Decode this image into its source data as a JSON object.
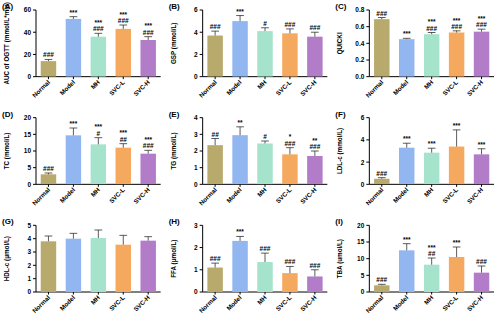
{
  "chart_data": [
    {
      "type": "bar",
      "title": "(A)",
      "y_label": "AUC of OGTT (mmol/L*min)",
      "categories": [
        "Normal",
        "Model",
        "MH",
        "SVC-L",
        "SVC-H"
      ],
      "values": [
        14,
        52,
        36,
        43,
        33
      ],
      "errors": [
        1.5,
        2,
        3,
        3.5,
        3
      ],
      "annotations": [
        [
          "###"
        ],
        [
          "***"
        ],
        [
          "***",
          "###"
        ],
        [
          "***",
          "###"
        ],
        [
          "***",
          "###"
        ]
      ],
      "colors": [
        "#b8a96c",
        "#92b6f0",
        "#a6e3cc",
        "#f5a95e",
        "#b27cc8"
      ],
      "ylim": [
        0,
        60
      ],
      "yticks": [
        0,
        20,
        40,
        60
      ]
    },
    {
      "type": "bar",
      "title": "(B)",
      "y_label": "GSP (mmol/L)",
      "categories": [
        "Normal",
        "Model",
        "MH",
        "SVC-L",
        "SVC-H"
      ],
      "values": [
        3.7,
        5.0,
        4.1,
        3.9,
        3.6
      ],
      "errors": [
        0.4,
        0.5,
        0.3,
        0.4,
        0.4
      ],
      "annotations": [
        [
          "###"
        ],
        [
          "***"
        ],
        [
          "#"
        ],
        [
          "###"
        ],
        [
          "###"
        ]
      ],
      "colors": [
        "#b8a96c",
        "#92b6f0",
        "#a6e3cc",
        "#f5a95e",
        "#b27cc8"
      ],
      "ylim": [
        0,
        6
      ],
      "yticks": [
        0,
        2,
        4,
        6
      ]
    },
    {
      "type": "bar",
      "title": "(C)",
      "y_label": "QUICKI",
      "categories": [
        "Normal",
        "Model",
        "MH",
        "SVC-L",
        "SVC-H"
      ],
      "values": [
        0.69,
        0.45,
        0.51,
        0.53,
        0.54
      ],
      "errors": [
        0.02,
        0.01,
        0.02,
        0.02,
        0.03
      ],
      "annotations": [
        [
          "###"
        ],
        [
          "***"
        ],
        [
          "***",
          "###"
        ],
        [
          "***",
          "###"
        ],
        [
          "***",
          "###"
        ]
      ],
      "colors": [
        "#b8a96c",
        "#92b6f0",
        "#a6e3cc",
        "#f5a95e",
        "#b27cc8"
      ],
      "ylim": [
        0,
        0.8
      ],
      "yticks": [
        {
          "value": 0,
          "label": "0.0"
        },
        0.2,
        0.4,
        0.6,
        0.8
      ]
    },
    {
      "type": "bar",
      "title": "(D)",
      "y_label": "TC (mmol/L)",
      "categories": [
        "Normal",
        "Model",
        "MH",
        "SVC-L",
        "SVC-H"
      ],
      "values": [
        3.0,
        14.7,
        12.0,
        11.0,
        9.2
      ],
      "errors": [
        0.4,
        2.2,
        2.0,
        1.2,
        1.0
      ],
      "annotations": [
        [
          "###"
        ],
        [
          "***"
        ],
        [
          "***",
          "#"
        ],
        [
          "***",
          "##"
        ],
        [
          "***",
          "###"
        ]
      ],
      "colors": [
        "#b8a96c",
        "#92b6f0",
        "#a6e3cc",
        "#f5a95e",
        "#b27cc8"
      ],
      "ylim": [
        0,
        20
      ],
      "yticks": [
        0,
        5,
        10,
        15,
        20
      ]
    },
    {
      "type": "bar",
      "title": "(E)",
      "y_label": "TG (mmol/L)",
      "categories": [
        "Normal",
        "Model",
        "MH",
        "SVC-L",
        "SVC-H"
      ],
      "values": [
        2.35,
        2.95,
        2.45,
        1.8,
        1.7
      ],
      "errors": [
        0.4,
        0.5,
        0.15,
        0.4,
        0.3
      ],
      "annotations": [
        [
          "##"
        ],
        [
          "**"
        ],
        [
          "#"
        ],
        [
          "*",
          "###"
        ],
        [
          "**",
          "###"
        ]
      ],
      "colors": [
        "#b8a96c",
        "#92b6f0",
        "#a6e3cc",
        "#f5a95e",
        "#b27cc8"
      ],
      "ylim": [
        0,
        4
      ],
      "yticks": [
        0,
        1,
        2,
        3,
        4
      ]
    },
    {
      "type": "bar",
      "title": "(F)",
      "y_label": "LDL-c (mmol/L)",
      "categories": [
        "Normal",
        "Model",
        "MH",
        "SVC-L",
        "SVC-H"
      ],
      "values": [
        0.5,
        3.3,
        2.85,
        3.4,
        2.7
      ],
      "errors": [
        0.1,
        0.4,
        0.4,
        1.5,
        0.5
      ],
      "annotations": [
        [
          "###"
        ],
        [
          "***"
        ],
        [
          "***"
        ],
        [
          "***"
        ],
        [
          "***"
        ]
      ],
      "colors": [
        "#b8a96c",
        "#92b6f0",
        "#a6e3cc",
        "#f5a95e",
        "#b27cc8"
      ],
      "ylim": [
        0,
        6
      ],
      "yticks": [
        0,
        2,
        4,
        6
      ]
    },
    {
      "type": "bar",
      "title": "(G)",
      "y_label": "HDL-c (μmol/L)",
      "categories": [
        "Normal",
        "Model",
        "MH",
        "SVC-L",
        "SVC-H"
      ],
      "values": [
        3.8,
        4.0,
        4.05,
        3.55,
        3.85
      ],
      "errors": [
        0.4,
        0.4,
        0.6,
        0.7,
        0.3
      ],
      "annotations": [
        [],
        [],
        [],
        [],
        []
      ],
      "colors": [
        "#b8a96c",
        "#92b6f0",
        "#a6e3cc",
        "#f5a95e",
        "#b27cc8"
      ],
      "ylim": [
        0,
        5
      ],
      "yticks": [
        0,
        1,
        2,
        3,
        4,
        5
      ]
    },
    {
      "type": "bar",
      "title": "(H)",
      "y_label": "FFA (μmol/L)",
      "categories": [
        "Normal",
        "Model",
        "MH",
        "SVC-L",
        "SVC-H"
      ],
      "values": [
        1.1,
        2.3,
        1.35,
        0.85,
        0.7
      ],
      "errors": [
        0.2,
        0.2,
        0.4,
        0.3,
        0.3
      ],
      "annotations": [
        [
          "###"
        ],
        [
          "***"
        ],
        [
          "###"
        ],
        [
          "###"
        ],
        [
          "###"
        ]
      ],
      "colors": [
        "#b8a96c",
        "#92b6f0",
        "#a6e3cc",
        "#f5a95e",
        "#b27cc8"
      ],
      "ylim": [
        0,
        3
      ],
      "yticks": [
        0,
        1,
        2,
        3
      ]
    },
    {
      "type": "bar",
      "title": "(I)",
      "y_label": "TBA (umol/L)",
      "categories": [
        "Normal",
        "Model",
        "MH",
        "SVC-L",
        "SVC-H"
      ],
      "values": [
        2.0,
        12.5,
        8.2,
        10.5,
        5.8
      ],
      "errors": [
        0.3,
        2.0,
        2.0,
        3.0,
        2.0
      ],
      "annotations": [
        [
          "###"
        ],
        [
          "***"
        ],
        [
          "***",
          "##"
        ],
        [
          "***"
        ],
        [
          "###"
        ]
      ],
      "colors": [
        "#b8a96c",
        "#92b6f0",
        "#a6e3cc",
        "#f5a95e",
        "#b27cc8"
      ],
      "ylim": [
        0,
        20
      ],
      "yticks": [
        0,
        5,
        10,
        15,
        20
      ]
    }
  ]
}
